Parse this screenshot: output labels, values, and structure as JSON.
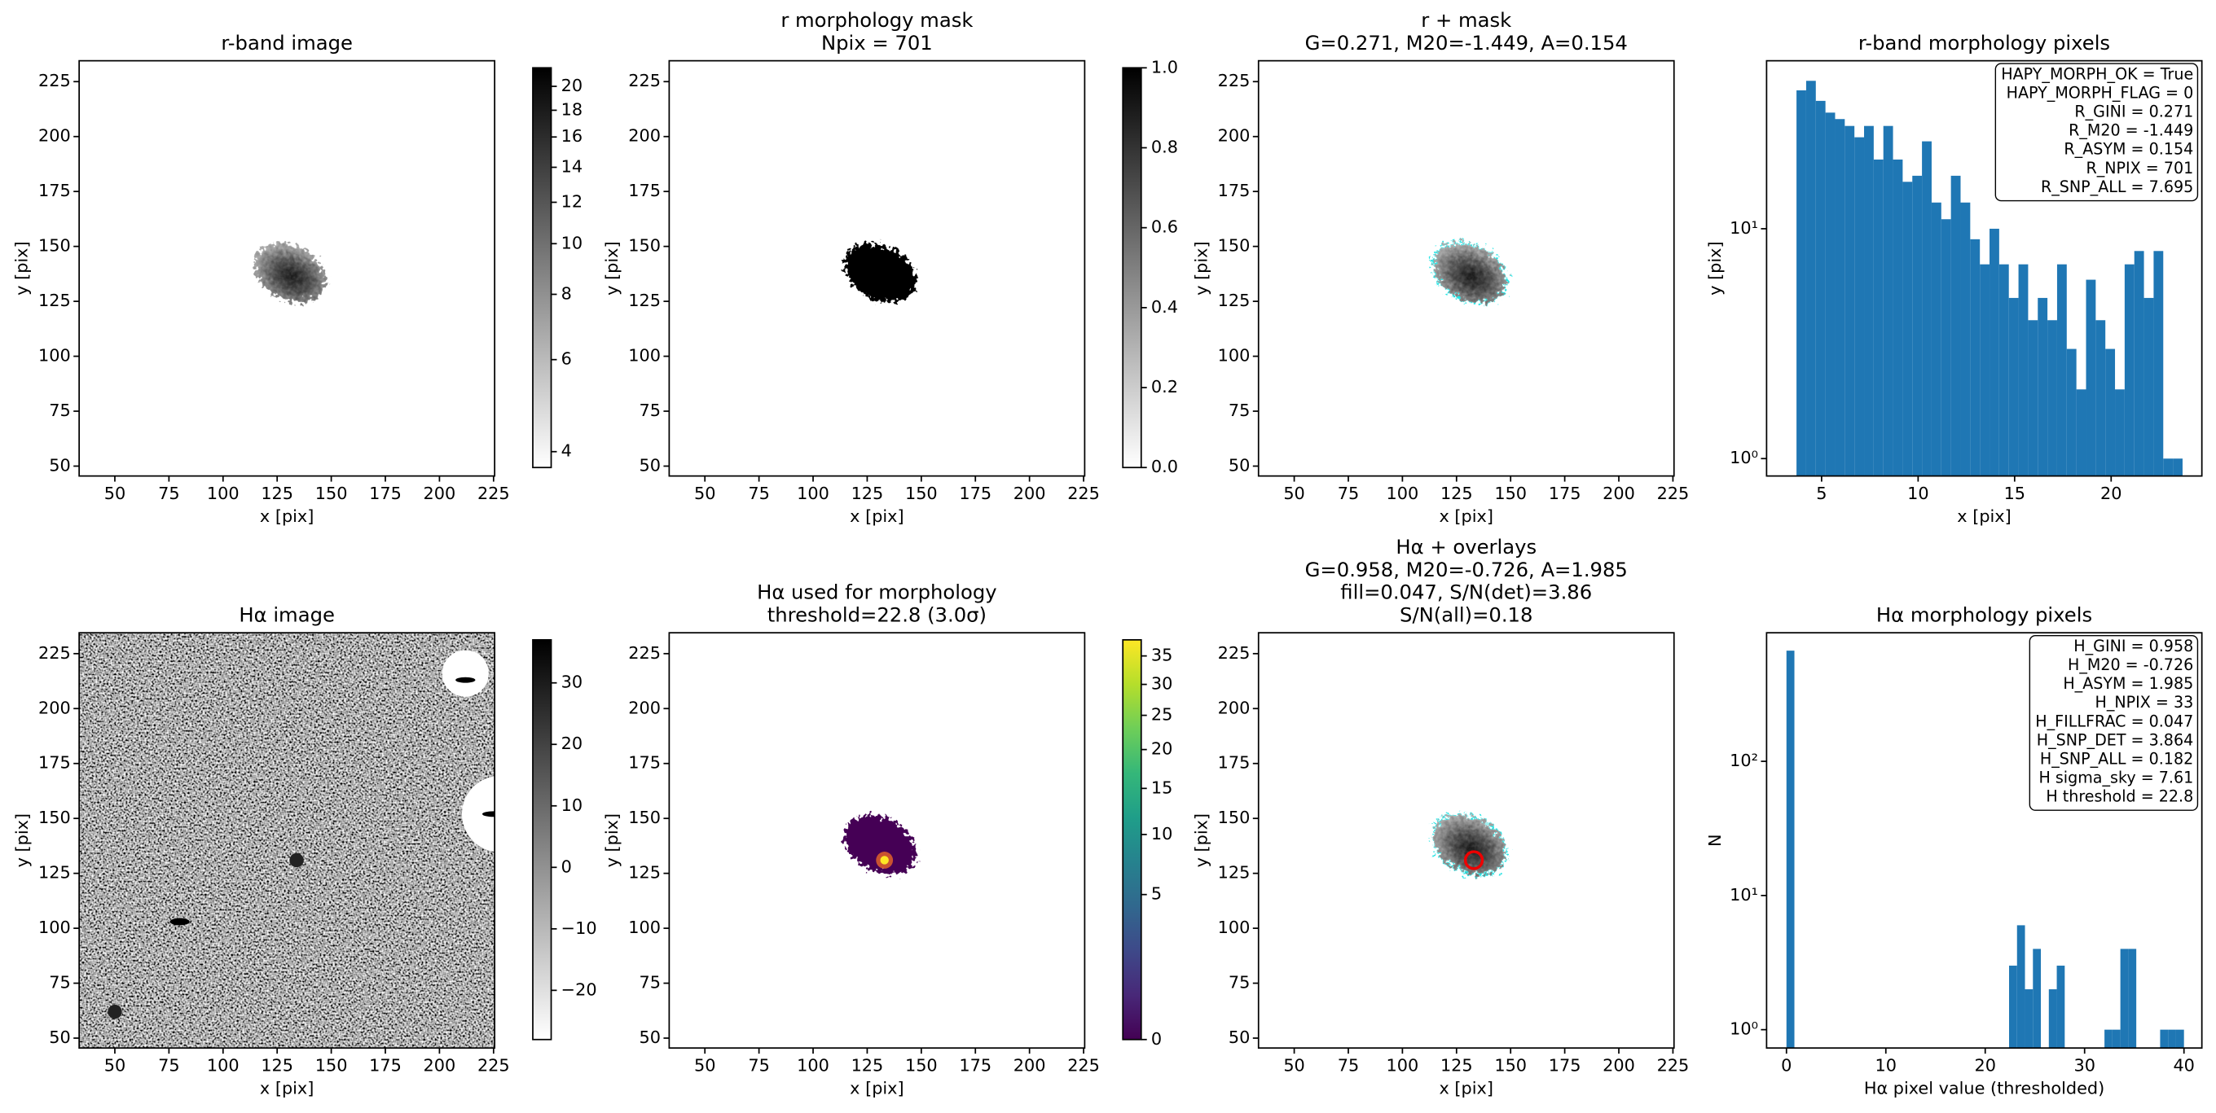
{
  "chart_data": [
    {
      "type": "image",
      "title": [
        "r-band image"
      ],
      "xlabel": "x [pix]",
      "ylabel": "y [pix]",
      "xlim": [
        33.5,
        225.5
      ],
      "ylim": [
        45.5,
        234.5
      ],
      "xticks": [
        50,
        75,
        100,
        125,
        150,
        175,
        200,
        225
      ],
      "yticks": [
        50,
        75,
        100,
        125,
        150,
        175,
        200,
        225
      ],
      "colorbar": {
        "cmap": "gray_r",
        "scale": "log",
        "clim": [
          3.73,
          21.7
        ],
        "ticks": [
          4,
          6,
          8,
          10,
          12,
          14,
          16,
          18,
          20
        ]
      }
    },
    {
      "type": "image",
      "title": [
        "r morphology mask",
        "Npix = 701"
      ],
      "xlabel": "x [pix]",
      "ylabel": "y [pix]",
      "xlim": [
        33.5,
        225.5
      ],
      "ylim": [
        45.5,
        234.5
      ],
      "xticks": [
        50,
        75,
        100,
        125,
        150,
        175,
        200,
        225
      ],
      "yticks": [
        50,
        75,
        100,
        125,
        150,
        175,
        200,
        225
      ],
      "colorbar": {
        "cmap": "gray_r",
        "scale": "linear",
        "clim": [
          0,
          1
        ],
        "ticks": [
          {
            "value": 0,
            "label": "0.0"
          },
          0.2,
          0.4,
          0.6,
          0.8,
          {
            "value": 1,
            "label": "1.0"
          }
        ]
      }
    },
    {
      "type": "image",
      "title": [
        "r + mask",
        "G=0.271, M20=-1.449, A=0.154"
      ],
      "xlabel": "x [pix]",
      "ylabel": "y [pix]",
      "xlim": [
        33.5,
        225.5
      ],
      "ylim": [
        45.5,
        234.5
      ],
      "xticks": [
        50,
        75,
        100,
        125,
        150,
        175,
        200,
        225
      ],
      "yticks": [
        50,
        75,
        100,
        125,
        150,
        175,
        200,
        225
      ]
    },
    {
      "type": "histogram",
      "title": [
        "r-band morphology pixels"
      ],
      "xlabel": "x [pix]",
      "ylabel": "y [pix]",
      "color": "#1f77b4",
      "ylog": true,
      "xlim": [
        2.15,
        24.7
      ],
      "ylim": [
        0.84,
        53.8
      ],
      "xticks": [
        5,
        10,
        15,
        20
      ],
      "yticks": [
        {
          "value": 1,
          "label": "10⁰"
        },
        {
          "value": 10,
          "label": "10¹"
        }
      ],
      "bins": [
        3.7,
        4.2,
        4.7,
        5.2,
        5.7,
        6.2,
        6.7,
        7.2,
        7.7,
        8.2,
        8.7,
        9.2,
        9.7,
        10.2,
        10.7,
        11.2,
        11.7,
        12.2,
        12.7,
        13.2,
        13.7,
        14.2,
        14.7,
        15.2,
        15.7,
        16.2,
        16.7,
        17.2,
        17.7,
        18.2,
        18.7,
        19.2,
        19.7,
        20.2,
        20.7,
        21.2,
        21.7,
        22.2,
        22.7,
        23.2,
        23.7
      ],
      "values": [
        40,
        44,
        36,
        32,
        30,
        28,
        25,
        28,
        20,
        28,
        20,
        16,
        17,
        24,
        13,
        11,
        17,
        13,
        9,
        7,
        10,
        7,
        5,
        7,
        4,
        5,
        4,
        7,
        3,
        2,
        6,
        4,
        3,
        2,
        7,
        8,
        5,
        8,
        1,
        1
      ],
      "annotations": [
        "HAPY_MORPH_OK = True",
        "HAPY_MORPH_FLAG = 0",
        "R_GINI = 0.271",
        "R_M20 = -1.449",
        "R_ASYM = 0.154",
        "R_NPIX = 701",
        "R_SNP_ALL = 7.695"
      ]
    },
    {
      "type": "image",
      "title": [
        "Hα image"
      ],
      "xlabel": "x [pix]",
      "ylabel": "y [pix]",
      "xlim": [
        33.5,
        225.5
      ],
      "ylim": [
        45.5,
        234.5
      ],
      "xticks": [
        50,
        75,
        100,
        125,
        150,
        175,
        200,
        225
      ],
      "yticks": [
        50,
        75,
        100,
        125,
        150,
        175,
        200,
        225
      ],
      "colorbar": {
        "cmap": "gray_r",
        "scale": "linear",
        "clim": [
          -28,
          37
        ],
        "ticks": [
          {
            "value": -20,
            "label": "−20"
          },
          {
            "value": -10,
            "label": "−10"
          },
          0,
          10,
          20,
          30
        ]
      }
    },
    {
      "type": "image",
      "title": [
        "Hα used for morphology",
        "threshold=22.8 (3.0σ)"
      ],
      "xlabel": "x [pix]",
      "ylabel": "y [pix]",
      "xlim": [
        33.5,
        225.5
      ],
      "ylim": [
        45.5,
        234.5
      ],
      "xticks": [
        50,
        75,
        100,
        125,
        150,
        175,
        200,
        225
      ],
      "yticks": [
        50,
        75,
        100,
        125,
        150,
        175,
        200,
        225
      ],
      "colorbar": {
        "cmap": "viridis",
        "scale": "sqrt",
        "clim": [
          0,
          38
        ],
        "ticks": [
          0,
          5,
          10,
          15,
          20,
          25,
          30,
          35
        ]
      }
    },
    {
      "type": "image",
      "title": [
        "Hα + overlays",
        "G=0.958, M20=-0.726, A=1.985",
        "fill=0.047, S/N(det)=3.86",
        "S/N(all)=0.18"
      ],
      "xlabel": "x [pix]",
      "ylabel": "y [pix]",
      "xlim": [
        33.5,
        225.5
      ],
      "ylim": [
        45.5,
        234.5
      ],
      "xticks": [
        50,
        75,
        100,
        125,
        150,
        175,
        200,
        225
      ],
      "yticks": [
        50,
        75,
        100,
        125,
        150,
        175,
        200,
        225
      ]
    },
    {
      "type": "histogram",
      "title": [
        "Hα morphology pixels"
      ],
      "xlabel": "Hα pixel value (thresholded)",
      "ylabel": "N",
      "color": "#1f77b4",
      "ylog": true,
      "xlim": [
        -2,
        41.8
      ],
      "ylim": [
        0.73,
        908
      ],
      "xticks": [
        0,
        10,
        20,
        30,
        40
      ],
      "yticks": [
        {
          "value": 1,
          "label": "10⁰"
        },
        {
          "value": 10,
          "label": "10¹"
        },
        {
          "value": 100,
          "label": "10²"
        }
      ],
      "bins": [
        0,
        0.8,
        1.6,
        2.4,
        3.2,
        4,
        4.8,
        5.6,
        6.4,
        7.2,
        8,
        8.8,
        9.6,
        10.4,
        11.2,
        12,
        12.8,
        13.6,
        14.4,
        15.2,
        16,
        16.8,
        17.6,
        18.4,
        19.2,
        20,
        20.8,
        21.6,
        22.4,
        23.2,
        24,
        24.8,
        25.6,
        26.4,
        27.2,
        28,
        28.8,
        29.6,
        30.4,
        31.2,
        32,
        32.8,
        33.6,
        34.4,
        35.2,
        36,
        36.8,
        37.6,
        38.4,
        39.2,
        40
      ],
      "values": [
        668,
        0,
        0,
        0,
        0,
        0,
        0,
        0,
        0,
        0,
        0,
        0,
        0,
        0,
        0,
        0,
        0,
        0,
        0,
        0,
        0,
        0,
        0,
        0,
        0,
        0,
        0,
        0,
        3,
        6,
        2,
        4,
        0,
        2,
        3,
        0,
        0,
        0,
        0,
        0,
        1,
        1,
        4,
        4,
        0,
        0,
        0,
        1,
        1,
        1
      ],
      "annotations": [
        "H_GINI = 0.958",
        "H_M20 = -0.726",
        "H_ASYM = 1.985",
        "H_NPIX = 33",
        "H_FILLFRAC = 0.047",
        "H_SNP_DET = 3.864",
        "H_SNP_ALL = 0.182",
        "H sigma_sky = 7.61",
        "H threshold = 22.8"
      ]
    }
  ]
}
